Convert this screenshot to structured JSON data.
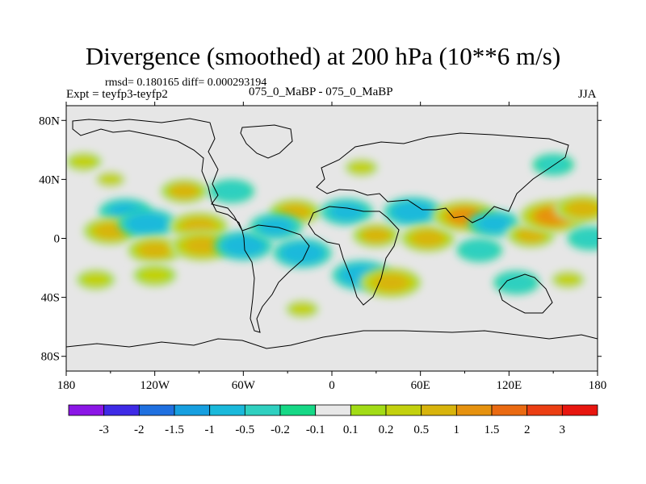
{
  "chart_data": {
    "type": "heatmap",
    "title": "Divergence (smoothed) at 200 hPa (10**6 m/s)",
    "stats": "rmsd= 0.180165 diff= 0.000293194",
    "experiment": "Expt = teyfp3-teyfp2",
    "runs": "075_0_MaBP - 075_0_MaBP",
    "season": "JJA",
    "x_range": [
      -180,
      180
    ],
    "y_range": [
      -90,
      90
    ],
    "x_ticks": [
      {
        "value": -180,
        "label": "180"
      },
      {
        "value": -120,
        "label": "120W"
      },
      {
        "value": -60,
        "label": "60W"
      },
      {
        "value": 0,
        "label": "0"
      },
      {
        "value": 60,
        "label": "60E"
      },
      {
        "value": 120,
        "label": "120E"
      },
      {
        "value": 180,
        "label": "180"
      }
    ],
    "y_ticks": [
      {
        "value": 80,
        "label": "80N"
      },
      {
        "value": 40,
        "label": "40N"
      },
      {
        "value": 0,
        "label": "0"
      },
      {
        "value": -40,
        "label": "40S"
      },
      {
        "value": -80,
        "label": "80S"
      }
    ],
    "colorbar": {
      "colors": [
        "#8b16e6",
        "#3e2ae6",
        "#1f70e0",
        "#169fe0",
        "#1ab9db",
        "#2fd0c0",
        "#16d886",
        "#e8e8e8",
        "#a2dc16",
        "#c3d10e",
        "#d8b40c",
        "#e6920f",
        "#ea6a12",
        "#eb3e13",
        "#e8160f"
      ],
      "labels": [
        "-3",
        "-2",
        "-1.5",
        "-1",
        "-0.5",
        "-0.2",
        "-0.1",
        "0.1",
        "0.2",
        "0.5",
        "1",
        "1.5",
        "2",
        "3"
      ]
    },
    "features": [
      {
        "lon": -168,
        "lat": 52,
        "value": 0.35
      },
      {
        "lon": -150,
        "lat": 40,
        "value": 0.25
      },
      {
        "lon": -140,
        "lat": 18,
        "value": -0.6
      },
      {
        "lon": -100,
        "lat": 32,
        "value": 0.6
      },
      {
        "lon": -150,
        "lat": 5,
        "value": 0.8
      },
      {
        "lon": -125,
        "lat": 10,
        "value": -0.8
      },
      {
        "lon": -90,
        "lat": 8,
        "value": 0.9
      },
      {
        "lon": -120,
        "lat": -8,
        "value": 0.8
      },
      {
        "lon": -88,
        "lat": -5,
        "value": 1.0
      },
      {
        "lon": -60,
        "lat": -5,
        "value": -0.8
      },
      {
        "lon": -68,
        "lat": 32,
        "value": -0.4
      },
      {
        "lon": -25,
        "lat": 18,
        "value": 0.7
      },
      {
        "lon": -38,
        "lat": 8,
        "value": -0.6
      },
      {
        "lon": -20,
        "lat": -10,
        "value": -0.8
      },
      {
        "lon": 10,
        "lat": 18,
        "value": -0.6
      },
      {
        "lon": 30,
        "lat": 2,
        "value": 0.6
      },
      {
        "lon": 55,
        "lat": 18,
        "value": -0.8
      },
      {
        "lon": 65,
        "lat": 0,
        "value": 0.8
      },
      {
        "lon": 90,
        "lat": 15,
        "value": 1.1
      },
      {
        "lon": 110,
        "lat": 10,
        "value": -0.6
      },
      {
        "lon": 135,
        "lat": 2,
        "value": 0.6
      },
      {
        "lon": 150,
        "lat": 15,
        "value": 1.2
      },
      {
        "lon": 170,
        "lat": 20,
        "value": 0.8
      },
      {
        "lon": 175,
        "lat": 0,
        "value": -0.4
      },
      {
        "lon": 20,
        "lat": -25,
        "value": -0.8
      },
      {
        "lon": 40,
        "lat": -30,
        "value": 1.0
      },
      {
        "lon": -120,
        "lat": -25,
        "value": 0.5
      },
      {
        "lon": -160,
        "lat": -28,
        "value": 0.4
      },
      {
        "lon": 125,
        "lat": -30,
        "value": -0.4
      },
      {
        "lon": 160,
        "lat": -28,
        "value": 0.3
      },
      {
        "lon": -20,
        "lat": -48,
        "value": 0.3
      },
      {
        "lon": 150,
        "lat": 50,
        "value": -0.3
      },
      {
        "lon": 20,
        "lat": 48,
        "value": 0.3
      },
      {
        "lon": 100,
        "lat": -8,
        "value": -0.4
      }
    ]
  }
}
